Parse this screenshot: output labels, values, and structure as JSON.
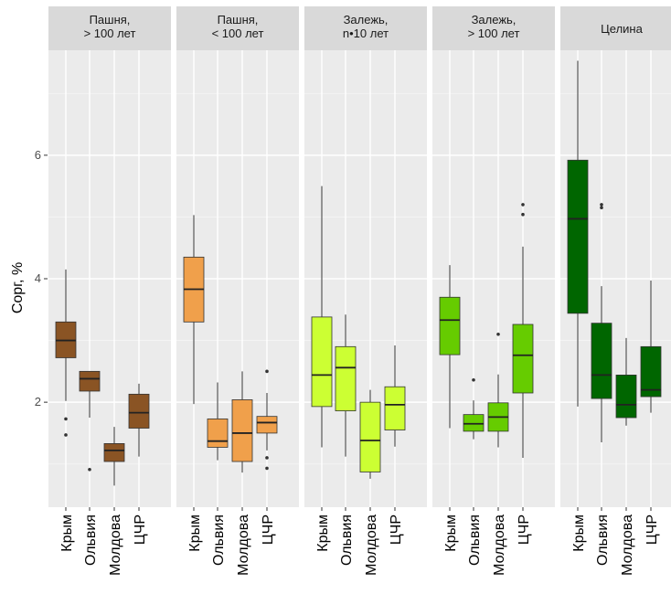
{
  "chart_data": {
    "type": "boxplot",
    "ylabel": "Сорг, %",
    "ylim": [
      0.3,
      7.7
    ],
    "yticks": [
      2,
      4,
      6
    ],
    "categories": [
      "Крым",
      "Ольвия",
      "Молдова",
      "ЦЧР"
    ],
    "panels": [
      {
        "title_lines": [
          "Пашня,",
          "> 100 лет"
        ],
        "color": "#8a5424",
        "boxes": [
          {
            "category": "Крым",
            "min": 2.02,
            "q1": 2.72,
            "median": 3.0,
            "q3": 3.3,
            "max": 4.15,
            "outliers": [
              1.73,
              1.47
            ]
          },
          {
            "category": "Ольвия",
            "min": 1.75,
            "q1": 2.18,
            "median": 2.38,
            "q3": 2.5,
            "max": 2.5,
            "outliers": [
              0.91
            ]
          },
          {
            "category": "Молдова",
            "min": 0.65,
            "q1": 1.04,
            "median": 1.22,
            "q3": 1.33,
            "max": 1.6,
            "outliers": []
          },
          {
            "category": "ЦЧР",
            "min": 1.12,
            "q1": 1.58,
            "median": 1.83,
            "q3": 2.13,
            "max": 2.3,
            "outliers": []
          }
        ]
      },
      {
        "title_lines": [
          "Пашня,",
          "< 100 лет"
        ],
        "color": "#f0a04b",
        "boxes": [
          {
            "category": "Крым",
            "min": 1.97,
            "q1": 3.3,
            "median": 3.83,
            "q3": 4.35,
            "max": 5.03,
            "outliers": []
          },
          {
            "category": "Ольвия",
            "min": 1.06,
            "q1": 1.27,
            "median": 1.37,
            "q3": 1.73,
            "max": 2.32,
            "outliers": []
          },
          {
            "category": "Молдова",
            "min": 0.86,
            "q1": 1.04,
            "median": 1.5,
            "q3": 2.04,
            "max": 2.5,
            "outliers": []
          },
          {
            "category": "ЦЧР",
            "min": 1.22,
            "q1": 1.5,
            "median": 1.67,
            "q3": 1.77,
            "max": 2.15,
            "outliers": [
              2.5,
              1.1,
              0.93
            ]
          }
        ]
      },
      {
        "title_lines": [
          "Залежь,",
          "n•10 лет"
        ],
        "color": "#ccff33",
        "boxes": [
          {
            "category": "Крым",
            "min": 1.27,
            "q1": 1.93,
            "median": 2.44,
            "q3": 3.38,
            "max": 5.5,
            "outliers": []
          },
          {
            "category": "Ольвия",
            "min": 1.12,
            "q1": 1.86,
            "median": 2.56,
            "q3": 2.9,
            "max": 3.42,
            "outliers": []
          },
          {
            "category": "Молдова",
            "min": 0.76,
            "q1": 0.87,
            "median": 1.38,
            "q3": 2.0,
            "max": 2.2,
            "outliers": []
          },
          {
            "category": "ЦЧР",
            "min": 1.28,
            "q1": 1.55,
            "median": 1.96,
            "q3": 2.25,
            "max": 2.92,
            "outliers": []
          }
        ]
      },
      {
        "title_lines": [
          "Залежь,",
          "> 100 лет"
        ],
        "color": "#66cc00",
        "boxes": [
          {
            "category": "Крым",
            "min": 1.58,
            "q1": 2.77,
            "median": 3.33,
            "q3": 3.7,
            "max": 4.22,
            "outliers": []
          },
          {
            "category": "Ольвия",
            "min": 1.4,
            "q1": 1.53,
            "median": 1.65,
            "q3": 1.8,
            "max": 2.03,
            "outliers": [
              2.36
            ]
          },
          {
            "category": "Молдова",
            "min": 1.27,
            "q1": 1.53,
            "median": 1.76,
            "q3": 1.99,
            "max": 2.45,
            "outliers": [
              3.1
            ]
          },
          {
            "category": "ЦЧР",
            "min": 1.1,
            "q1": 2.15,
            "median": 2.76,
            "q3": 3.26,
            "max": 4.52,
            "outliers": [
              5.2,
              5.04
            ]
          }
        ]
      },
      {
        "title_lines": [
          "Целина"
        ],
        "color": "#006600",
        "boxes": [
          {
            "category": "Крым",
            "min": 1.93,
            "q1": 3.44,
            "median": 4.97,
            "q3": 5.92,
            "max": 7.53,
            "outliers": []
          },
          {
            "category": "Ольвия",
            "min": 1.35,
            "q1": 2.06,
            "median": 2.44,
            "q3": 3.28,
            "max": 3.88,
            "outliers": [
              5.2,
              5.15
            ]
          },
          {
            "category": "Молдова",
            "min": 1.62,
            "q1": 1.75,
            "median": 1.96,
            "q3": 2.44,
            "max": 3.04,
            "outliers": []
          },
          {
            "category": "ЦЧР",
            "min": 1.83,
            "q1": 2.09,
            "median": 2.2,
            "q3": 2.9,
            "max": 3.97,
            "outliers": []
          }
        ]
      }
    ]
  }
}
